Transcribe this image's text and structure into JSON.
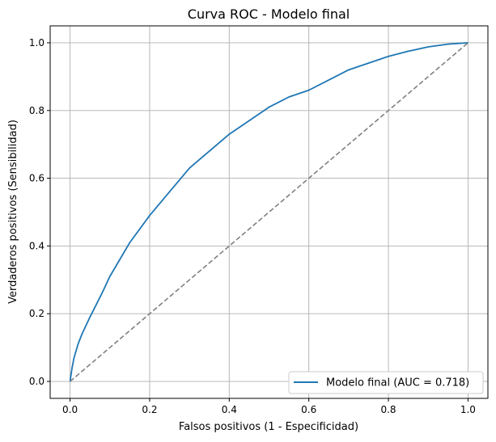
{
  "chart_data": {
    "type": "line",
    "title": "Curva ROC - Modelo final",
    "xlabel": "Falsos positivos (1 - Especificidad)",
    "ylabel": "Verdaderos positivos (Sensibilidad)",
    "xlim": [
      -0.05,
      1.05
    ],
    "ylim": [
      -0.05,
      1.05
    ],
    "xticks": [
      "0.0",
      "0.2",
      "0.4",
      "0.6",
      "0.8",
      "1.0"
    ],
    "yticks": [
      "0.0",
      "0.2",
      "0.4",
      "0.6",
      "0.8",
      "1.0"
    ],
    "grid": true,
    "legend_position": "lower-right",
    "series": [
      {
        "name": "Modelo final (AUC = 0.718)",
        "color": "#1f77b4",
        "style": "solid",
        "x": [
          0.0,
          0.005,
          0.01,
          0.02,
          0.03,
          0.05,
          0.08,
          0.1,
          0.12,
          0.15,
          0.2,
          0.25,
          0.3,
          0.35,
          0.4,
          0.45,
          0.5,
          0.55,
          0.6,
          0.65,
          0.7,
          0.75,
          0.8,
          0.85,
          0.9,
          0.95,
          1.0
        ],
        "y": [
          0.0,
          0.04,
          0.07,
          0.11,
          0.14,
          0.19,
          0.26,
          0.31,
          0.35,
          0.41,
          0.49,
          0.56,
          0.63,
          0.68,
          0.73,
          0.77,
          0.81,
          0.84,
          0.86,
          0.89,
          0.92,
          0.94,
          0.96,
          0.975,
          0.988,
          0.996,
          1.0
        ]
      },
      {
        "name": "",
        "color": "#808080",
        "style": "dashed",
        "x": [
          0.0,
          1.0
        ],
        "y": [
          0.0,
          1.0
        ]
      }
    ]
  }
}
